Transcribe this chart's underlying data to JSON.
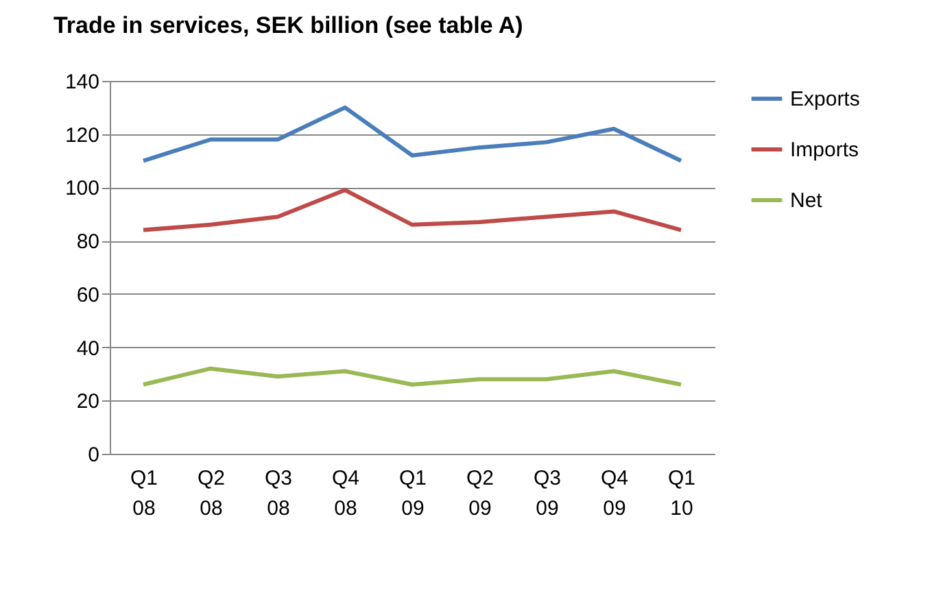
{
  "chart_data": {
    "type": "line",
    "title": "Trade in services, SEK billion (see table A)",
    "categories": [
      "Q1 08",
      "Q2 08",
      "Q3 08",
      "Q4 08",
      "Q1 09",
      "Q2 09",
      "Q3 09",
      "Q4 09",
      "Q1 10"
    ],
    "series": [
      {
        "name": "Exports",
        "color": "#4a7ebb",
        "values": [
          110,
          118,
          118,
          130,
          112,
          115,
          117,
          122,
          110
        ]
      },
      {
        "name": "Imports",
        "color": "#be4b48",
        "values": [
          84,
          86,
          89,
          99,
          86,
          87,
          89,
          91,
          84
        ]
      },
      {
        "name": "Net",
        "color": "#98b954",
        "values": [
          26,
          32,
          29,
          31,
          26,
          28,
          28,
          31,
          26
        ]
      }
    ],
    "ylim": [
      0,
      140
    ],
    "yticks": [
      0,
      20,
      40,
      60,
      80,
      100,
      120,
      140
    ],
    "grid": "y",
    "legend": "right",
    "marker": "none",
    "line_style": "solid"
  }
}
